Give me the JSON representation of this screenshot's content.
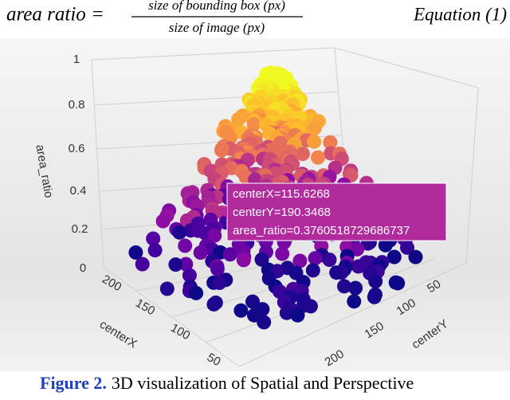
{
  "equation": {
    "lhs": "area ratio =",
    "numerator": "size of bounding box (px)",
    "denominator": "size of image (px)",
    "tag": "Equation (1)"
  },
  "plot": {
    "z_axis": {
      "label": "area_ratio",
      "ticks": [
        "0",
        "0.2",
        "0.4",
        "0.6",
        "0.8",
        "1"
      ]
    },
    "x_axis": {
      "label": "centerX",
      "ticks": [
        "200",
        "150",
        "100",
        "50"
      ]
    },
    "y_axis": {
      "label": "centerY",
      "ticks": [
        "50",
        "100",
        "150",
        "200"
      ]
    },
    "tooltip": [
      "centerX=115.6268",
      "centerY=190.3468",
      "area_ratio=0.3760518729686737"
    ]
  },
  "caption": {
    "label": "Figure 2.",
    "text": "3D visualization of Spatial and Perspective"
  }
}
